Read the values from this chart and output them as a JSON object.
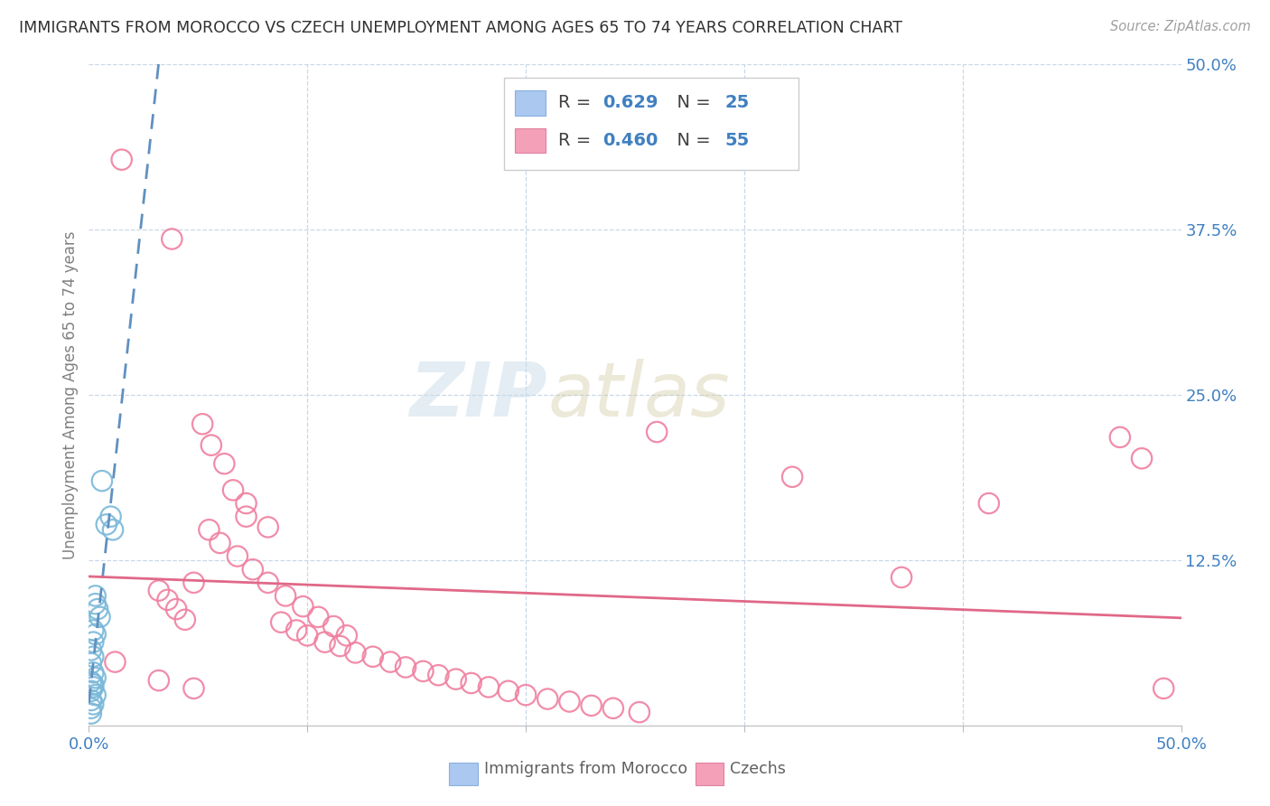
{
  "title": "IMMIGRANTS FROM MOROCCO VS CZECH UNEMPLOYMENT AMONG AGES 65 TO 74 YEARS CORRELATION CHART",
  "source": "Source: ZipAtlas.com",
  "ylabel": "Unemployment Among Ages 65 to 74 years",
  "xlim": [
    0.0,
    0.5
  ],
  "ylim": [
    0.0,
    0.5
  ],
  "watermark_zip": "ZIP",
  "watermark_atlas": "atlas",
  "morocco_color": "#7ab8d9",
  "czech_color": "#f080a0",
  "background_color": "#ffffff",
  "grid_color": "#c8d8e8",
  "title_color": "#303030",
  "morocco_scatter": [
    [
      0.006,
      0.185
    ],
    [
      0.01,
      0.158
    ],
    [
      0.008,
      0.152
    ],
    [
      0.011,
      0.148
    ],
    [
      0.003,
      0.098
    ],
    [
      0.003,
      0.092
    ],
    [
      0.004,
      0.088
    ],
    [
      0.005,
      0.082
    ],
    [
      0.002,
      0.072
    ],
    [
      0.003,
      0.069
    ],
    [
      0.002,
      0.063
    ],
    [
      0.001,
      0.057
    ],
    [
      0.002,
      0.052
    ],
    [
      0.001,
      0.047
    ],
    [
      0.002,
      0.04
    ],
    [
      0.003,
      0.036
    ],
    [
      0.001,
      0.033
    ],
    [
      0.002,
      0.031
    ],
    [
      0.002,
      0.029
    ],
    [
      0.001,
      0.026
    ],
    [
      0.003,
      0.023
    ],
    [
      0.001,
      0.019
    ],
    [
      0.002,
      0.016
    ],
    [
      0.001,
      0.013
    ],
    [
      0.001,
      0.009
    ]
  ],
  "czech_scatter": [
    [
      0.015,
      0.428
    ],
    [
      0.038,
      0.368
    ],
    [
      0.052,
      0.228
    ],
    [
      0.056,
      0.212
    ],
    [
      0.062,
      0.198
    ],
    [
      0.066,
      0.178
    ],
    [
      0.072,
      0.168
    ],
    [
      0.072,
      0.158
    ],
    [
      0.082,
      0.15
    ],
    [
      0.048,
      0.108
    ],
    [
      0.032,
      0.102
    ],
    [
      0.036,
      0.095
    ],
    [
      0.04,
      0.088
    ],
    [
      0.044,
      0.08
    ],
    [
      0.088,
      0.078
    ],
    [
      0.095,
      0.072
    ],
    [
      0.1,
      0.068
    ],
    [
      0.108,
      0.063
    ],
    [
      0.115,
      0.06
    ],
    [
      0.122,
      0.055
    ],
    [
      0.13,
      0.052
    ],
    [
      0.138,
      0.048
    ],
    [
      0.145,
      0.044
    ],
    [
      0.153,
      0.041
    ],
    [
      0.16,
      0.038
    ],
    [
      0.168,
      0.035
    ],
    [
      0.175,
      0.032
    ],
    [
      0.183,
      0.029
    ],
    [
      0.192,
      0.026
    ],
    [
      0.2,
      0.023
    ],
    [
      0.21,
      0.02
    ],
    [
      0.22,
      0.018
    ],
    [
      0.23,
      0.015
    ],
    [
      0.24,
      0.013
    ],
    [
      0.252,
      0.01
    ],
    [
      0.26,
      0.222
    ],
    [
      0.322,
      0.188
    ],
    [
      0.372,
      0.112
    ],
    [
      0.412,
      0.168
    ],
    [
      0.472,
      0.218
    ],
    [
      0.482,
      0.202
    ],
    [
      0.492,
      0.028
    ],
    [
      0.032,
      0.034
    ],
    [
      0.048,
      0.028
    ],
    [
      0.012,
      0.048
    ],
    [
      0.055,
      0.148
    ],
    [
      0.06,
      0.138
    ],
    [
      0.068,
      0.128
    ],
    [
      0.075,
      0.118
    ],
    [
      0.082,
      0.108
    ],
    [
      0.09,
      0.098
    ],
    [
      0.098,
      0.09
    ],
    [
      0.105,
      0.082
    ],
    [
      0.112,
      0.075
    ],
    [
      0.118,
      0.068
    ]
  ]
}
